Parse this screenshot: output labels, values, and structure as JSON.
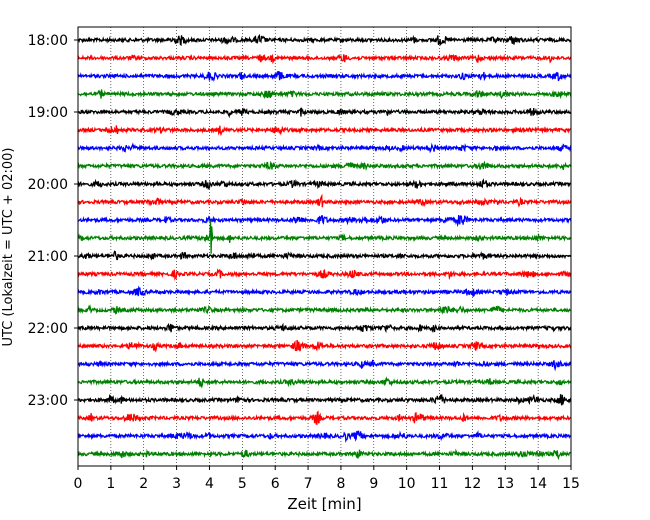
{
  "chart_data": {
    "type": "line",
    "title": "",
    "xlabel": "Zeit  [min]",
    "ylabel": "UTC (Lokalzeit = UTC + 02:00)",
    "xlim": [
      0,
      15
    ],
    "x_ticks": [
      "0",
      "1",
      "2",
      "3",
      "4",
      "5",
      "6",
      "7",
      "8",
      "9",
      "10",
      "11",
      "12",
      "13",
      "14",
      "15"
    ],
    "y_ticks": [
      "18:00",
      "19:00",
      "20:00",
      "21:00",
      "22:00",
      "23:00"
    ],
    "grid": "vertical dotted",
    "trace_interval_min": 15,
    "trace_duration_min": 15,
    "trace_start_times": [
      "18:00",
      "18:15",
      "18:30",
      "18:45",
      "19:00",
      "19:15",
      "19:30",
      "19:45",
      "20:00",
      "20:15",
      "20:30",
      "20:45",
      "21:00",
      "21:15",
      "21:30",
      "21:45",
      "22:00",
      "22:15",
      "22:30",
      "22:45",
      "23:00",
      "23:15",
      "23:30",
      "23:45"
    ],
    "trace_colors": [
      "#000000",
      "#ff0000",
      "#0000ff",
      "#008000"
    ],
    "notable_events": [
      {
        "trace": "20:45",
        "minute": 4.05,
        "description": "large spike"
      },
      {
        "trace": "22:15",
        "minute": 6.7,
        "description": "burst"
      },
      {
        "trace": "23:00",
        "minute": 11.0,
        "description": "burst"
      }
    ]
  }
}
